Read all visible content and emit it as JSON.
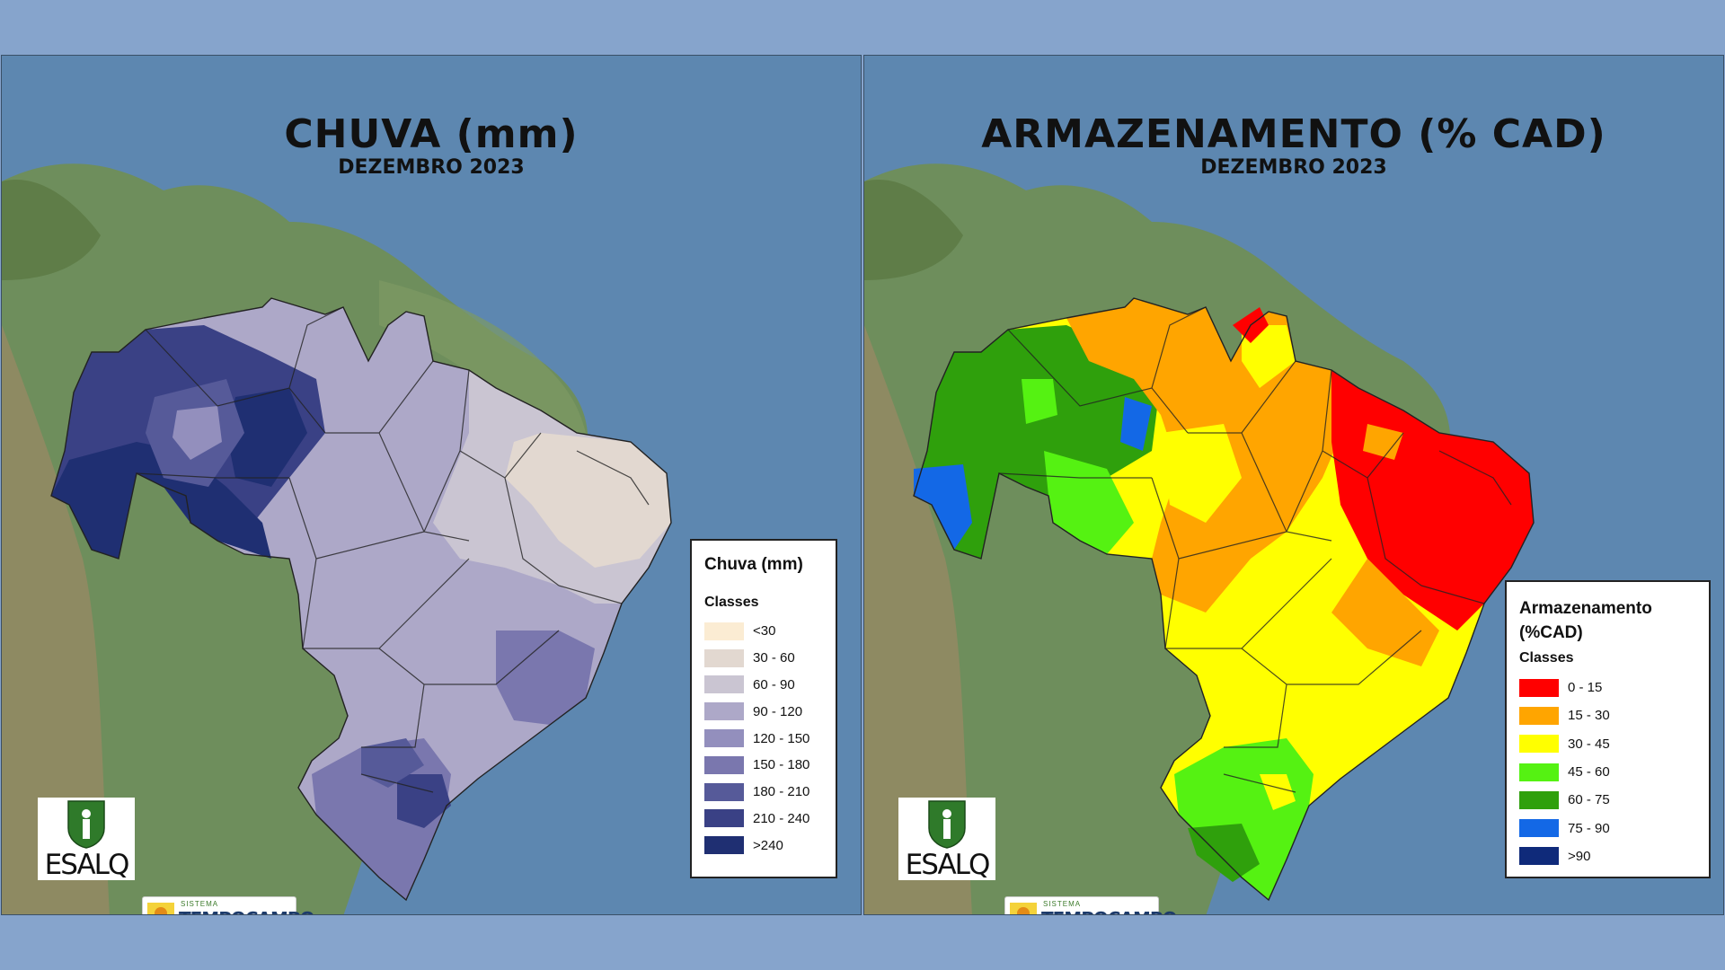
{
  "maps": [
    {
      "title": "CHUVA (mm)",
      "subtitle": "DEZEMBRO 2023",
      "legend": {
        "title": "Chuva (mm)",
        "subtitle": "Classes",
        "classes": [
          {
            "label": "<30",
            "color": "#fbecd3"
          },
          {
            "label": "30 - 60",
            "color": "#e2d8d0"
          },
          {
            "label": "60 - 90",
            "color": "#cac5d2"
          },
          {
            "label": "90 - 120",
            "color": "#ada8c8"
          },
          {
            "label": "120 - 150",
            "color": "#938fbd"
          },
          {
            "label": "150 - 180",
            "color": "#7a77ae"
          },
          {
            "label": "180 - 210",
            "color": "#565a99"
          },
          {
            "label": "210 - 240",
            "color": "#3a4185"
          },
          {
            "label": ">240",
            "color": "#1f2f72"
          }
        ]
      }
    },
    {
      "title": "ARMAZENAMENTO (% CAD)",
      "subtitle": "DEZEMBRO 2023",
      "legend": {
        "title": "Armazenamento (%CAD)",
        "subtitle": "Classes",
        "classes": [
          {
            "label": "0 - 15",
            "color": "#ff0000"
          },
          {
            "label": "15 - 30",
            "color": "#ffa500"
          },
          {
            "label": "30 - 45",
            "color": "#ffff00"
          },
          {
            "label": "45 - 60",
            "color": "#55f212"
          },
          {
            "label": "60 - 75",
            "color": "#2fa00c"
          },
          {
            "label": "75 - 90",
            "color": "#1368e6"
          },
          {
            "label": ">90",
            "color": "#0f2a7a"
          }
        ]
      }
    }
  ],
  "logos": {
    "esalq": "ESALQ",
    "tempocampo_small": "SISTEMA",
    "tempocampo": "TEMPOCAMPO"
  },
  "icons": [
    "esalq-shield-icon",
    "tempocampo-sun-icon"
  ]
}
